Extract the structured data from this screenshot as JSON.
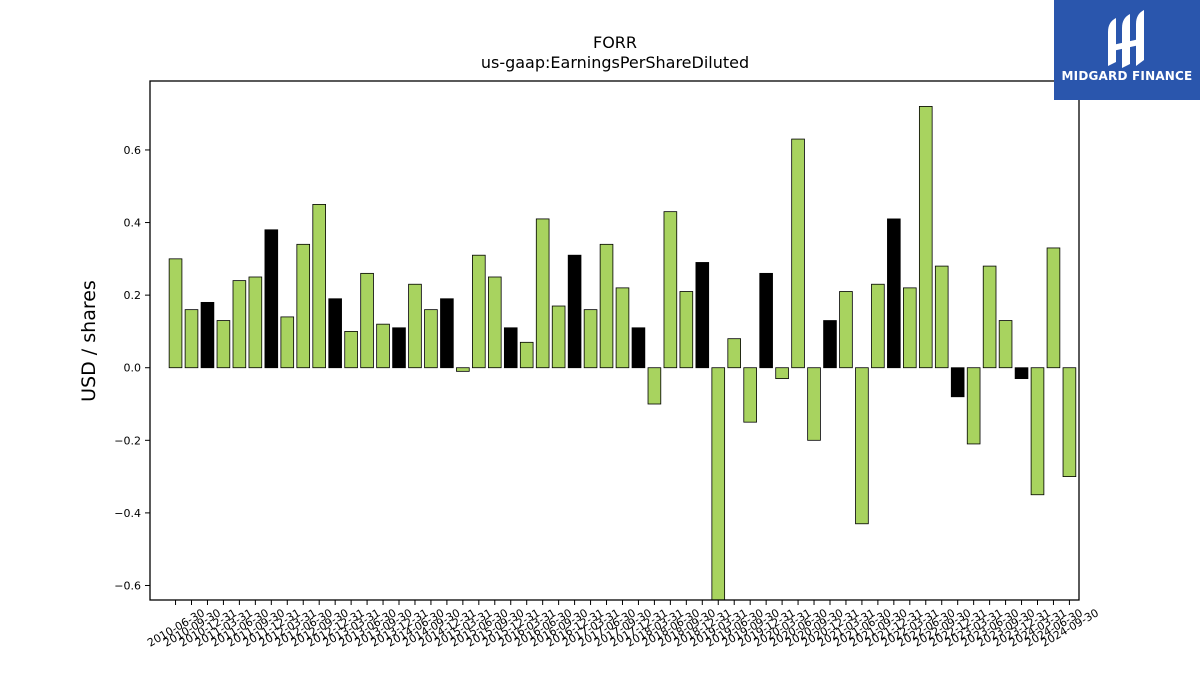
{
  "brand": {
    "name": "MIDGARD FINANCE",
    "color": "#2a56ad"
  },
  "chart_data": {
    "type": "bar",
    "title": "FORR",
    "subtitle": "us-gaap:EarningsPerShareDiluted",
    "xlabel": "",
    "ylabel": "USD / shares",
    "ylim": [
      -0.64,
      0.79
    ],
    "yticks": [
      -0.6,
      -0.4,
      -0.2,
      0.0,
      0.2,
      0.4,
      0.6
    ],
    "grid": false,
    "colors": {
      "default": "#a8d35f",
      "highlight": "#000000",
      "edge": "#000000"
    },
    "tick_labels": [
      "2010-06-30",
      "2010-09-30",
      "2010-12-31",
      "2011-03-31",
      "2011-06-30",
      "2011-09-30",
      "2011-12-31",
      "2012-03-31",
      "2012-06-30",
      "2012-09-30",
      "2012-12-31",
      "2013-03-31",
      "2013-06-30",
      "2013-09-30",
      "2013-12-31",
      "2014-06-30",
      "2014-09-30",
      "2014-12-31",
      "2015-03-31",
      "2015-06-30",
      "2015-09-30",
      "2015-12-31",
      "2016-03-31",
      "2016-06-30",
      "2016-09-30",
      "2016-12-31",
      "2017-03-31",
      "2017-06-30",
      "2017-09-30",
      "2017-12-31",
      "2018-03-31",
      "2018-06-30",
      "2018-09-30",
      "2018-12-31",
      "2019-03-31",
      "2019-06-30",
      "2019-09-30",
      "2019-12-31",
      "2020-03-31",
      "2020-06-30",
      "2020-09-30",
      "2020-12-31",
      "2021-03-31",
      "2021-06-30",
      "2021-09-30",
      "2021-12-31",
      "2022-03-31",
      "2022-06-30",
      "2022-09-30",
      "2022-12-31",
      "2023-03-31",
      "2023-06-30",
      "2023-09-30",
      "2023-12-31",
      "2024-03-31",
      "2024-06-30",
      "2024-09-30"
    ],
    "values": [
      0.3,
      0.16,
      0.18,
      0.13,
      0.24,
      0.25,
      0.38,
      0.14,
      0.34,
      0.45,
      0.19,
      0.1,
      0.26,
      0.12,
      0.11,
      0.23,
      0.16,
      0.19,
      -0.01,
      0.31,
      0.25,
      0.11,
      0.07,
      0.41,
      0.17,
      0.31,
      0.16,
      0.34,
      0.22,
      0.11,
      -0.1,
      0.43,
      0.21,
      0.29,
      -0.64,
      0.08,
      -0.15,
      0.26,
      -0.03,
      0.63,
      -0.2,
      0.13,
      0.21,
      -0.43,
      0.23,
      0.41,
      0.22,
      0.72,
      0.28,
      -0.08,
      -0.21,
      0.28,
      0.13,
      -0.03,
      -0.35,
      0.33,
      -0.3
    ],
    "highlight": [
      false,
      false,
      true,
      false,
      false,
      false,
      true,
      false,
      false,
      false,
      true,
      false,
      false,
      false,
      true,
      false,
      false,
      true,
      false,
      false,
      false,
      true,
      false,
      false,
      false,
      true,
      false,
      false,
      false,
      true,
      false,
      false,
      false,
      true,
      false,
      false,
      false,
      true,
      false,
      false,
      false,
      true,
      false,
      false,
      false,
      true,
      false,
      false,
      false,
      true,
      false,
      false,
      false,
      true,
      false,
      false,
      false
    ]
  }
}
